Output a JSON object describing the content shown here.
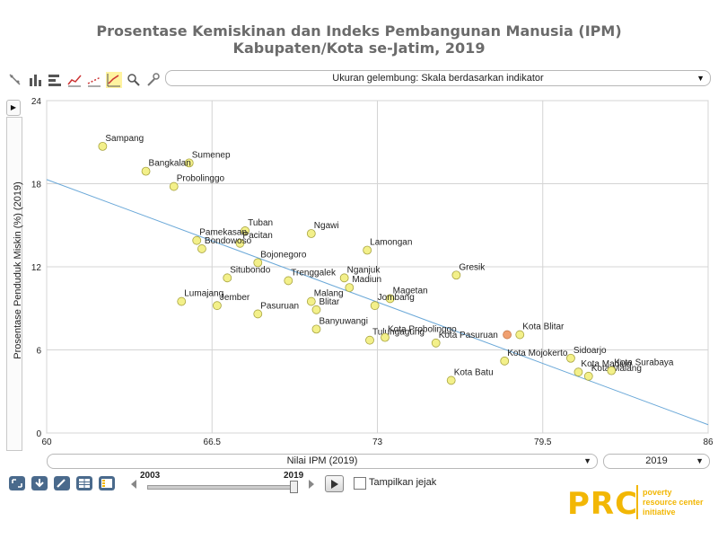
{
  "title_line1": "Prosentase Kemiskinan dan Indeks Pembangunan Manusia (IPM)",
  "title_line2": "Kabupaten/Kota se-Jatim, 2019",
  "toolbar": {
    "icons": [
      "scatter-icon",
      "bar-chart-icon",
      "horizontal-bar-icon",
      "line-chart-icon",
      "trend-line-icon",
      "bubble-chart-icon",
      "zoom-icon",
      "settings-icon"
    ]
  },
  "size_selector": "Ukuran gelembung: Skala berdasarkan indikator",
  "x_selector": "Nilai IPM  (2019)",
  "year_selector": "2019",
  "slider": {
    "start": "2003",
    "end": "2019",
    "value": 2019
  },
  "show_trace_label": "Tampilkan jejak",
  "logo": {
    "abbr": "PRC",
    "tagline": [
      "poverty",
      "resource center",
      "initiative"
    ]
  },
  "colors": {
    "bubble": "#f3f08a",
    "bubble_highlight": "#f0a070",
    "trend": "#6aa8d8",
    "grid": "#d4d4d4",
    "logo": "#f2b705"
  },
  "chart_data": {
    "type": "scatter",
    "title": "Prosentase Kemiskinan dan Indeks Pembangunan Manusia (IPM) Kabupaten/Kota se-Jatim, 2019",
    "xlabel": "Nilai IPM  (2019)",
    "ylabel": "Prosentase Penduduk Miskin (%) (2019)",
    "xlim": [
      60,
      86
    ],
    "ylim": [
      0,
      24
    ],
    "xticks": [
      "60",
      "66.5",
      "73",
      "79.5",
      "86"
    ],
    "yticks": [
      "0",
      "6",
      "12",
      "18",
      "24"
    ],
    "grid": true,
    "trendline": {
      "x": [
        60,
        86
      ],
      "y": [
        18.3,
        0.6
      ]
    },
    "points": [
      {
        "label": "Sampang",
        "x": 62.2,
        "y": 20.7
      },
      {
        "label": "Sumenep",
        "x": 65.6,
        "y": 19.5
      },
      {
        "label": "Bangkalan",
        "x": 63.9,
        "y": 18.9
      },
      {
        "label": "Probolinggo",
        "x": 65.0,
        "y": 17.8
      },
      {
        "label": "Tuban",
        "x": 67.8,
        "y": 14.6
      },
      {
        "label": "Ngawi",
        "x": 70.4,
        "y": 14.4
      },
      {
        "label": "Pamekasan",
        "x": 65.9,
        "y": 13.9
      },
      {
        "label": "Pacitan",
        "x": 67.6,
        "y": 13.7
      },
      {
        "label": "Bondowoso",
        "x": 66.1,
        "y": 13.3
      },
      {
        "label": "Lamongan",
        "x": 72.6,
        "y": 13.2
      },
      {
        "label": "Bojonegoro",
        "x": 68.3,
        "y": 12.3
      },
      {
        "label": "Situbondo",
        "x": 67.1,
        "y": 11.2
      },
      {
        "label": "Trenggalek",
        "x": 69.5,
        "y": 11.0
      },
      {
        "label": "Nganjuk",
        "x": 71.7,
        "y": 11.2
      },
      {
        "label": "Gresik",
        "x": 76.1,
        "y": 11.4
      },
      {
        "label": "Madiun",
        "x": 71.9,
        "y": 10.5
      },
      {
        "label": "Lumajang",
        "x": 65.3,
        "y": 9.5
      },
      {
        "label": "Jember",
        "x": 66.7,
        "y": 9.2
      },
      {
        "label": "Malang",
        "x": 70.4,
        "y": 9.5
      },
      {
        "label": "Blitar",
        "x": 70.6,
        "y": 8.9
      },
      {
        "label": "Magetan",
        "x": 73.5,
        "y": 9.7
      },
      {
        "label": "Jombang",
        "x": 72.9,
        "y": 9.2
      },
      {
        "label": "Pasuruan",
        "x": 68.3,
        "y": 8.6
      },
      {
        "label": "Banyuwangi",
        "x": 70.6,
        "y": 7.5
      },
      {
        "label": "Tulungagung",
        "x": 72.7,
        "y": 6.7
      },
      {
        "label": "Kota Probolinggo",
        "x": 73.3,
        "y": 6.9
      },
      {
        "label": "Kota Pasuruan",
        "x": 75.3,
        "y": 6.5
      },
      {
        "label": "Kota Blitar",
        "x": 78.6,
        "y": 7.1
      },
      {
        "label": "",
        "x": 78.1,
        "y": 7.1,
        "highlight": true
      },
      {
        "label": "Kota Mojokerto",
        "x": 78.0,
        "y": 5.2
      },
      {
        "label": "Sidoarjo",
        "x": 80.6,
        "y": 5.4
      },
      {
        "label": "Kota Madiun",
        "x": 80.9,
        "y": 4.4
      },
      {
        "label": "Kota Malang",
        "x": 81.3,
        "y": 4.1
      },
      {
        "label": "Kota Surabaya",
        "x": 82.2,
        "y": 4.5
      },
      {
        "label": "Kota Batu",
        "x": 75.9,
        "y": 3.8
      }
    ]
  }
}
